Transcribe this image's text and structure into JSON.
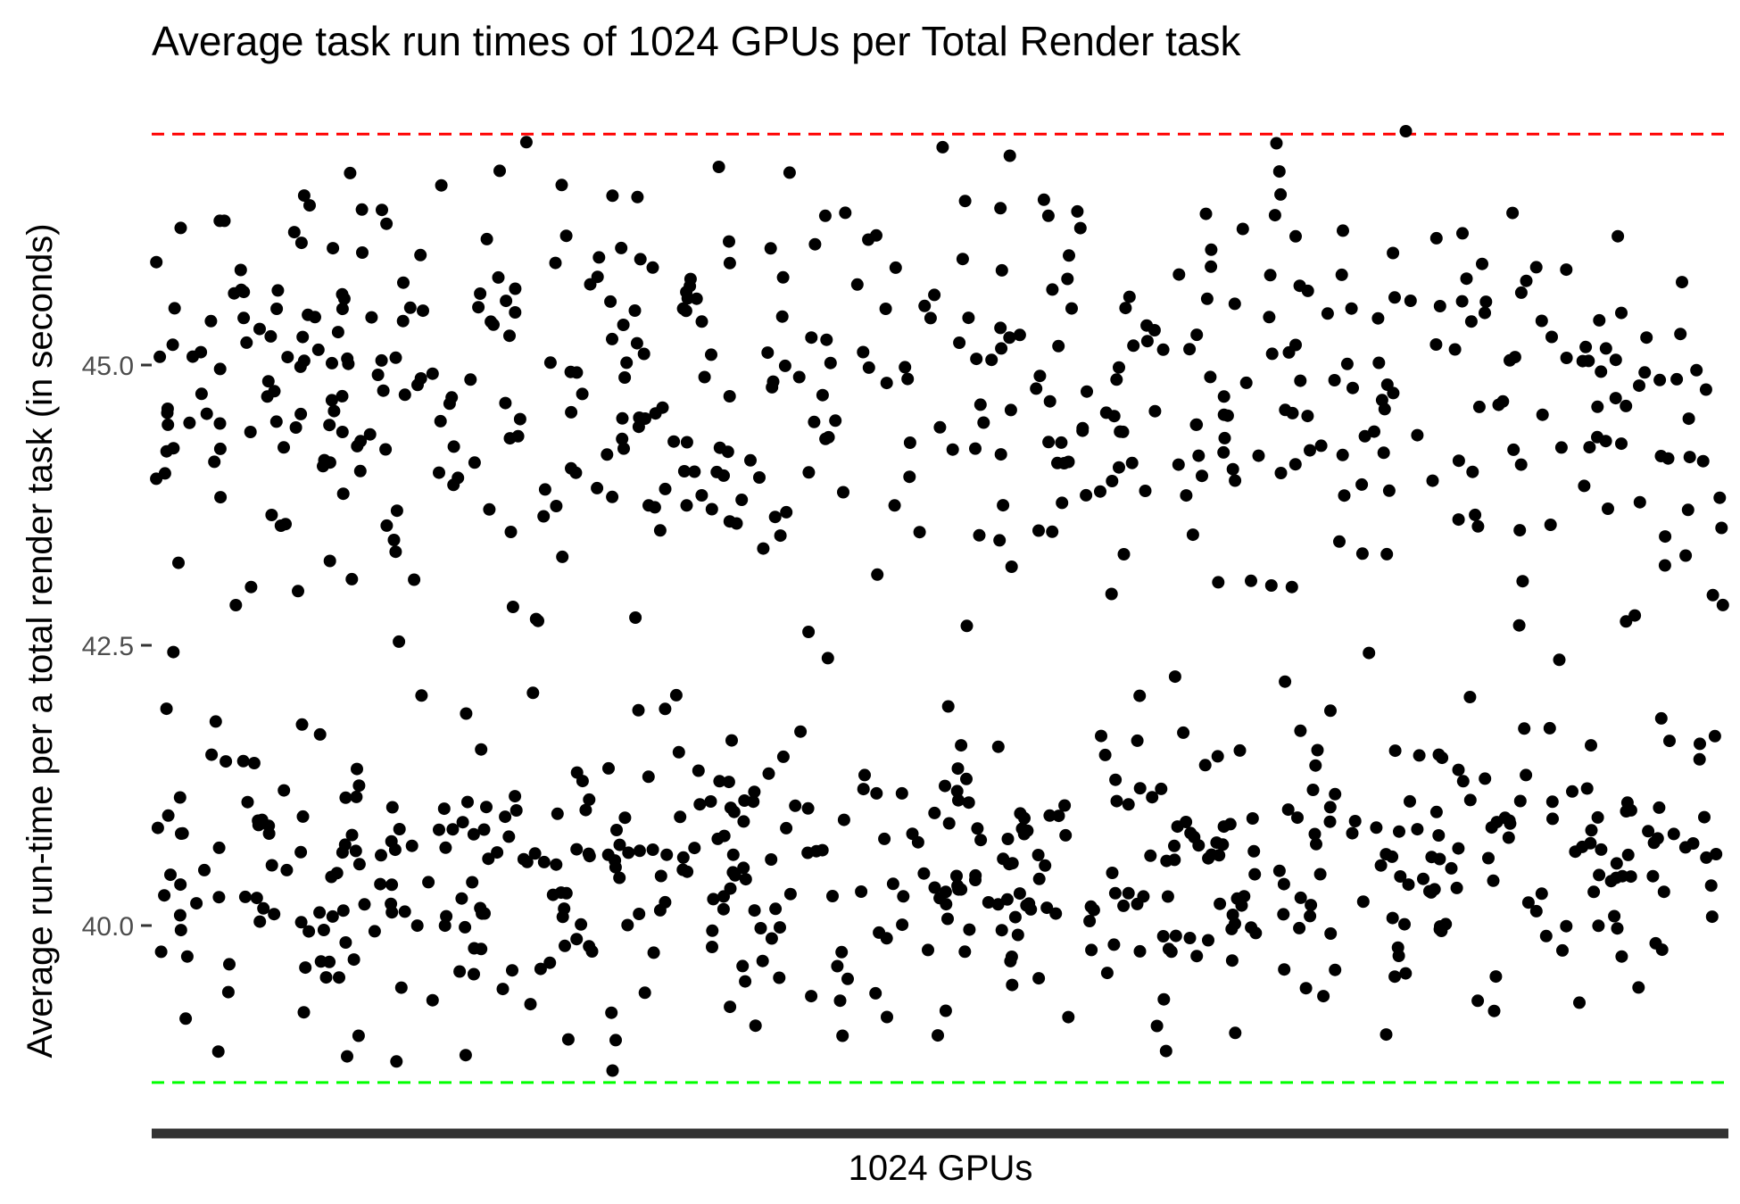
{
  "chart_data": {
    "type": "scatter",
    "title": "Average task run times of 1024 GPUs per Total Render task",
    "xlabel": "1024 GPUs",
    "ylabel": "Average run-time per a total render task (in seconds)",
    "y_ticks": [
      40.0,
      42.5,
      45.0
    ],
    "y_tick_labels": [
      "40.0",
      "42.5",
      "45.0"
    ],
    "ylim": [
      38.2,
      47.3
    ],
    "grid": false,
    "legend": "none",
    "reference_lines": [
      {
        "y": 47.06,
        "color": "#ff0000",
        "style": "dashed"
      },
      {
        "y": 38.6,
        "color": "#00ff00",
        "style": "dashed"
      }
    ],
    "series": [
      {
        "point_color": "#000000",
        "x_range": [
          0,
          1
        ],
        "clusters": [
          {
            "y_min": 42.5,
            "y_max": 47.1,
            "mean": 44.7,
            "sd": 0.95
          },
          {
            "y_min": 38.6,
            "y_max": 42.6,
            "mean": 40.55,
            "sd": 0.7
          }
        ],
        "n_points": 1024
      }
    ]
  }
}
